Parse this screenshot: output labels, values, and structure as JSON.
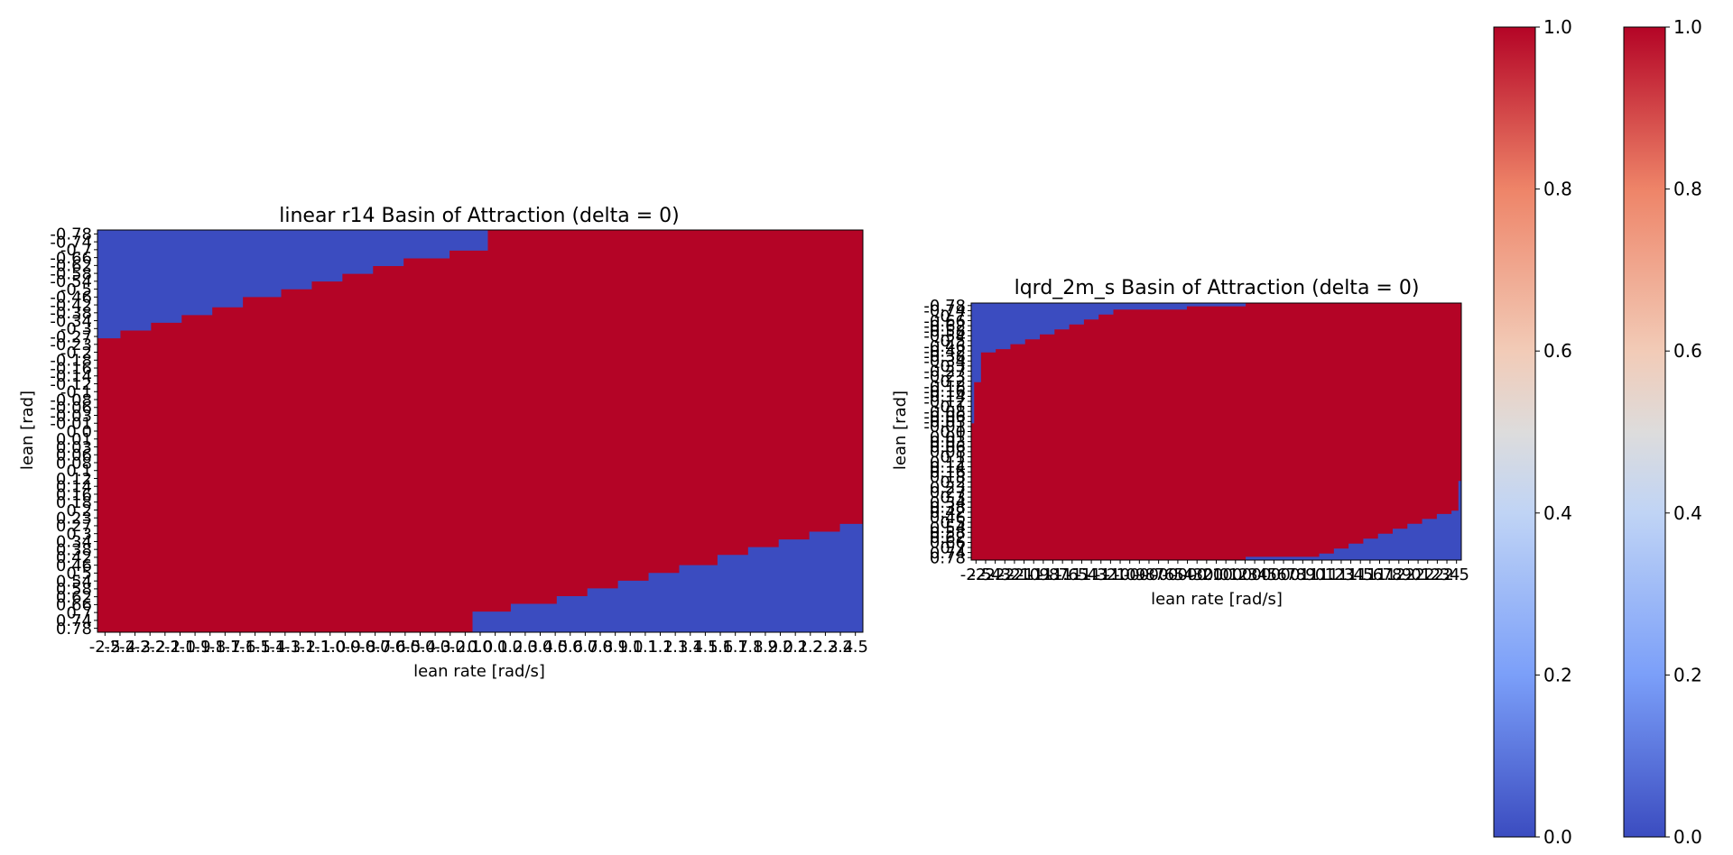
{
  "chart_data": [
    {
      "type": "heatmap",
      "title": "linear r14 Basin of Attraction (delta = 0)",
      "xlabel": "lean rate [rad/s]",
      "ylabel": "lean [rad]",
      "x_range": [
        -2.5,
        2.5
      ],
      "y_range": [
        -0.78,
        0.78
      ],
      "value_range": [
        0,
        1
      ],
      "colormap": "coolwarm",
      "grid": false,
      "y_tick_labels": [
        "-0.78",
        "-0.74",
        "-0.7",
        "-0.66",
        "-0.62",
        "-0.58",
        "-0.54",
        "-0.5",
        "-0.46",
        "-0.42",
        "-0.38",
        "-0.34",
        "-0.3",
        "-0.27",
        "-0.23",
        "-0.2",
        "-0.18",
        "-0.16",
        "-0.14",
        "-0.12",
        "-0.1",
        "-0.08",
        "-0.06",
        "-0.03",
        "-0.01",
        "0.0",
        "0.01",
        "0.03",
        "0.06",
        "0.08",
        "0.1",
        "0.12",
        "0.14",
        "0.16",
        "0.18",
        "0.2",
        "0.23",
        "0.27",
        "0.3",
        "0.34",
        "0.38",
        "0.42",
        "0.46",
        "0.5",
        "0.54",
        "0.58",
        "0.62",
        "0.66",
        "0.7",
        "0.74",
        "0.78"
      ],
      "x_tick_labels": [
        "-2.5",
        "-2.4",
        "-2.3",
        "-2.2",
        "-2.1",
        "-2.0",
        "-1.9",
        "-1.8",
        "-1.7",
        "-1.6",
        "-1.5",
        "-1.4",
        "-1.3",
        "-1.2",
        "-1.1",
        "-1.0",
        "-0.9",
        "-0.8",
        "-0.7",
        "-0.6",
        "-0.5",
        "-0.4",
        "-0.3",
        "-0.2",
        "-0.1",
        "0.0",
        "0.1",
        "0.2",
        "0.3",
        "0.4",
        "0.5",
        "0.6",
        "0.7",
        "0.8",
        "0.9",
        "1.0",
        "1.1",
        "1.2",
        "1.3",
        "1.4",
        "1.5",
        "1.6",
        "1.7",
        "1.8",
        "1.9",
        "2.0",
        "2.1",
        "2.2",
        "2.3",
        "2.4",
        "2.5"
      ],
      "basin_top_boundary": {
        "x": [
          -2.5,
          -2.35,
          -2.15,
          -1.95,
          -1.75,
          -1.55,
          -1.3,
          -1.1,
          -0.9,
          -0.7,
          -0.5,
          -0.2,
          0.05
        ],
        "lean": [
          -0.36,
          -0.39,
          -0.42,
          -0.45,
          -0.48,
          -0.52,
          -0.55,
          -0.58,
          -0.61,
          -0.64,
          -0.67,
          -0.7,
          -0.74
        ]
      },
      "basin_bottom_boundary": {
        "x": [
          2.5,
          2.35,
          2.15,
          1.95,
          1.75,
          1.55,
          1.3,
          1.1,
          0.9,
          0.7,
          0.5,
          0.2,
          -0.05
        ],
        "lean": [
          0.36,
          0.39,
          0.42,
          0.45,
          0.48,
          0.52,
          0.55,
          0.58,
          0.61,
          0.64,
          0.67,
          0.7,
          0.74
        ]
      }
    },
    {
      "type": "heatmap",
      "title": "lqrd_2m_s Basin of Attraction (delta = 0)",
      "xlabel": "lean rate [rad/s]",
      "ylabel": "lean [rad]",
      "x_range": [
        -2.5,
        2.5
      ],
      "y_range": [
        -0.78,
        0.78
      ],
      "value_range": [
        0,
        1
      ],
      "colormap": "coolwarm",
      "grid": false,
      "y_tick_labels": [
        "-0.78",
        "-0.74",
        "-0.7",
        "-0.66",
        "-0.62",
        "-0.58",
        "-0.54",
        "-0.5",
        "-0.46",
        "-0.42",
        "-0.38",
        "-0.34",
        "-0.3",
        "-0.27",
        "-0.23",
        "-0.2",
        "-0.18",
        "-0.16",
        "-0.14",
        "-0.12",
        "-0.1",
        "-0.08",
        "-0.06",
        "-0.03",
        "-0.01",
        "0.0",
        "0.01",
        "0.03",
        "0.06",
        "0.08",
        "0.1",
        "0.12",
        "0.14",
        "0.16",
        "0.18",
        "0.2",
        "0.23",
        "0.27",
        "0.3",
        "0.34",
        "0.38",
        "0.42",
        "0.46",
        "0.5",
        "0.54",
        "0.58",
        "0.62",
        "0.66",
        "0.7",
        "0.74",
        "0.78"
      ],
      "x_tick_labels": [
        "-2.5",
        "-2.4",
        "-2.3",
        "-2.2",
        "-2.1",
        "-2.0",
        "-1.9",
        "-1.8",
        "-1.7",
        "-1.6",
        "-1.5",
        "-1.4",
        "-1.3",
        "-1.2",
        "-1.1",
        "-1.0",
        "-0.9",
        "-0.8",
        "-0.7",
        "-0.6",
        "-0.5",
        "-0.4",
        "-0.3",
        "-0.2",
        "-0.1",
        "0.0",
        "0.1",
        "0.2",
        "0.3",
        "0.4",
        "0.5",
        "0.6",
        "0.7",
        "0.8",
        "0.9",
        "1.0",
        "1.1",
        "1.2",
        "1.3",
        "1.4",
        "1.5",
        "1.6",
        "1.7",
        "1.8",
        "1.9",
        "2.0",
        "2.1",
        "2.2",
        "2.3",
        "2.4",
        "2.5"
      ],
      "basin_top_boundary": {
        "x": [
          -2.5,
          -2.47,
          -2.4,
          -2.25,
          -2.1,
          -1.95,
          -1.8,
          -1.65,
          -1.5,
          -1.35,
          -1.2,
          -1.05,
          -0.3,
          0.3
        ],
        "lean": [
          -0.05,
          -0.3,
          -0.48,
          -0.5,
          -0.53,
          -0.56,
          -0.59,
          -0.62,
          -0.65,
          -0.68,
          -0.71,
          -0.74,
          -0.76,
          -0.78
        ]
      },
      "basin_bottom_boundary": {
        "x": [
          2.5,
          2.47,
          2.4,
          2.25,
          2.1,
          1.95,
          1.8,
          1.65,
          1.5,
          1.35,
          1.2,
          1.05,
          0.3,
          -0.3
        ],
        "lean": [
          0.3,
          0.48,
          0.5,
          0.53,
          0.56,
          0.59,
          0.62,
          0.65,
          0.68,
          0.71,
          0.74,
          0.76,
          0.78,
          0.78
        ]
      }
    }
  ],
  "colorbars": [
    {
      "ticks": [
        "0.0",
        "0.2",
        "0.4",
        "0.6",
        "0.8",
        "1.0"
      ]
    },
    {
      "ticks": [
        "0.0",
        "0.2",
        "0.4",
        "0.6",
        "0.8",
        "1.0"
      ]
    }
  ],
  "colors": {
    "stable": "#b40426",
    "unstable": "#3b4cc0"
  }
}
